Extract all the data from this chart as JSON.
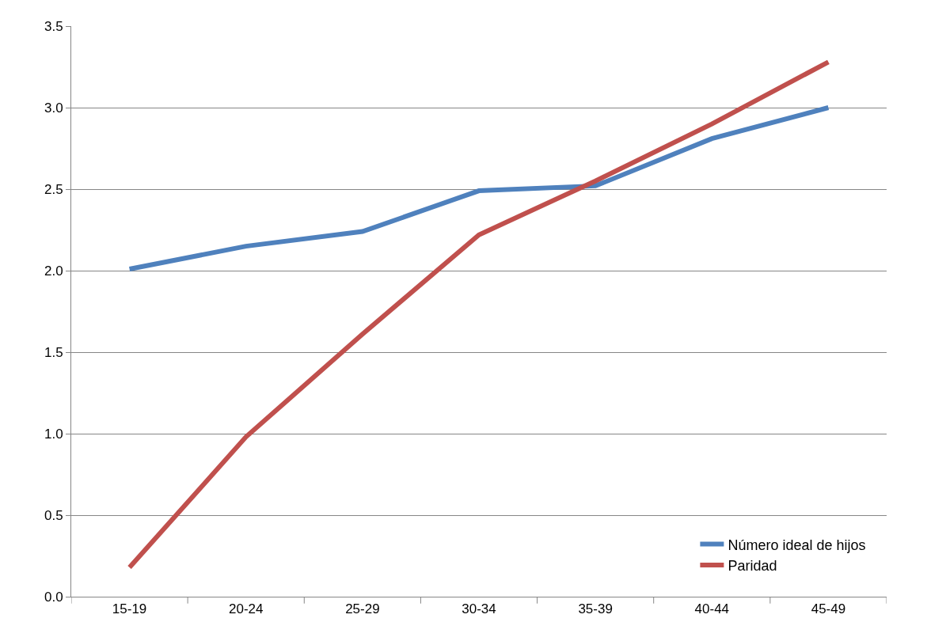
{
  "chart_data": {
    "type": "line",
    "categories": [
      "15-19",
      "20-24",
      "25-29",
      "30-34",
      "35-39",
      "40-44",
      "45-49"
    ],
    "series": [
      {
        "name": "Número ideal de hijos",
        "color": "#4f81bd",
        "values": [
          2.01,
          2.15,
          2.24,
          2.49,
          2.52,
          2.81,
          3.0
        ]
      },
      {
        "name": "Paridad",
        "color": "#c0504d",
        "values": [
          0.18,
          0.98,
          1.61,
          2.22,
          2.55,
          2.9,
          3.28
        ]
      }
    ],
    "ylim": [
      0,
      3.5
    ],
    "yticks": [
      {
        "value": 0,
        "label": "0.0"
      },
      {
        "value": 0.5,
        "label": "0.5"
      },
      {
        "value": 1,
        "label": "1.0"
      },
      {
        "value": 1.5,
        "label": "1.5"
      },
      {
        "value": 2,
        "label": "2.0"
      },
      {
        "value": 2.5,
        "label": "2.5"
      },
      {
        "value": 3,
        "label": "3.0"
      },
      {
        "value": 3.5,
        "label": "3.5"
      }
    ],
    "grid": "y",
    "legend": "bottom right",
    "marker": "none",
    "line_style": "solid"
  }
}
